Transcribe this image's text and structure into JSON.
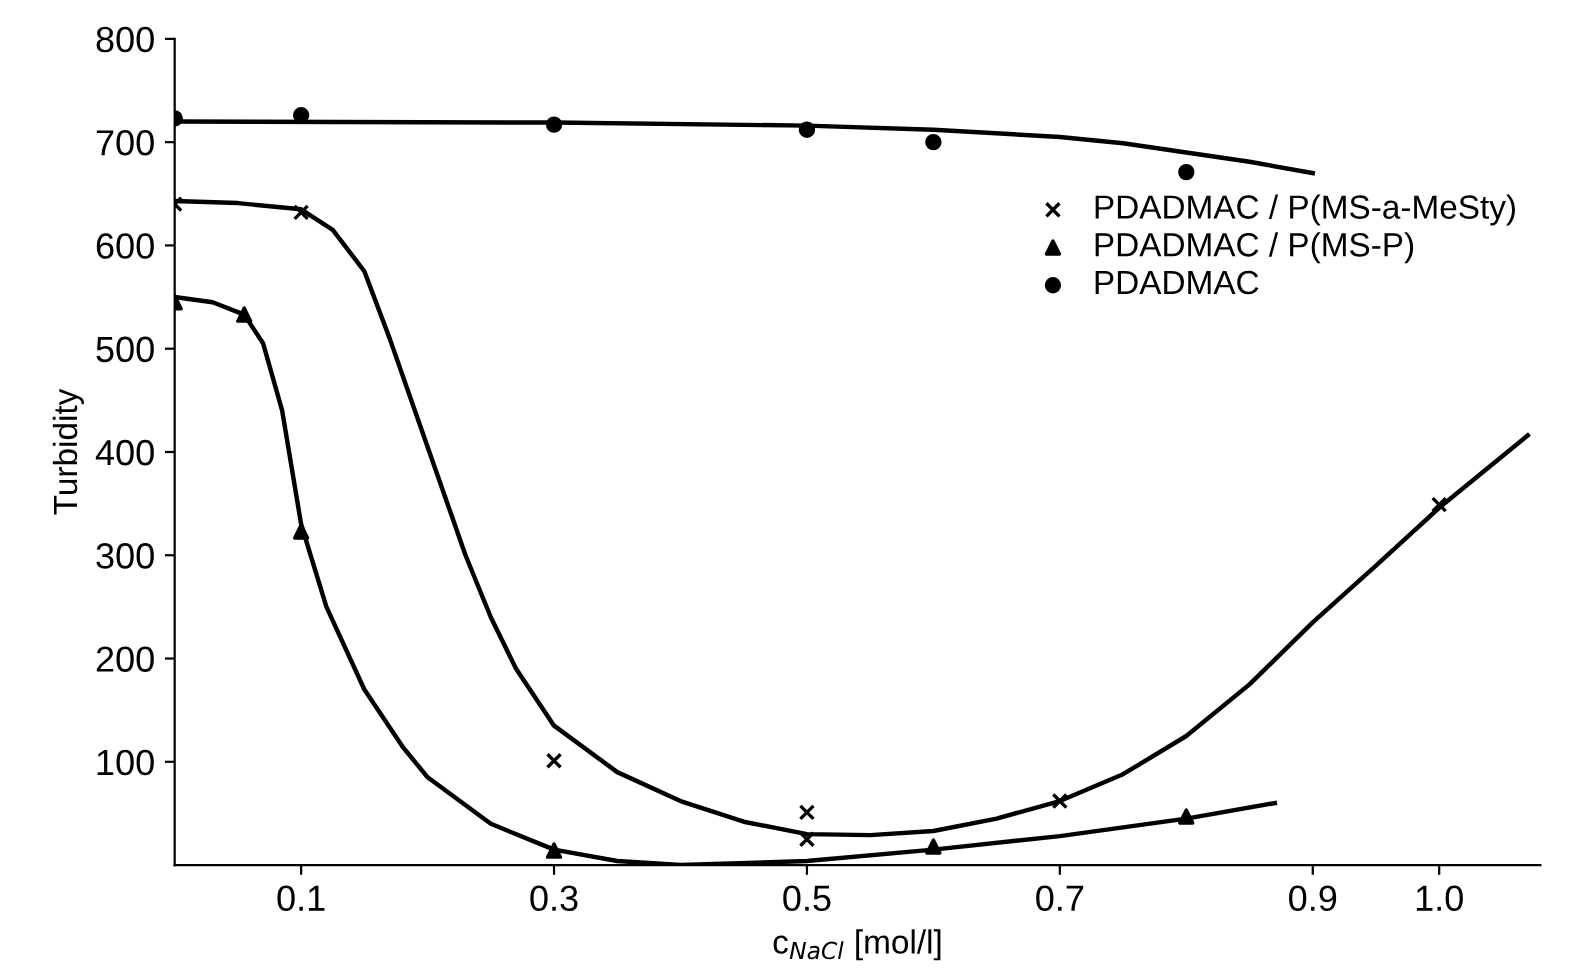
{
  "chart_data": {
    "type": "scatter",
    "xlabel": "c$_{NaCl}$ [mol/l]",
    "ylabel": "Turbidity",
    "xlim": [
      0,
      1.08
    ],
    "ylim": [
      0,
      800
    ],
    "xticks": [
      0.1,
      0.3,
      0.5,
      0.7,
      0.9,
      {
        "value": 1.0,
        "label": "1.0"
      }
    ],
    "yticks": [
      100,
      200,
      300,
      400,
      500,
      600,
      700,
      800
    ],
    "grid": false,
    "legend": "top right",
    "series": [
      {
        "name": "PDADMAC / P(MS-a-MeSty)",
        "type": "scatter",
        "marker": "cross",
        "color": "#000000",
        "x": [
          0,
          0.1,
          0.3,
          0.5,
          0.5,
          0.7,
          1.0
        ],
        "values": [
          640,
          632,
          101,
          51,
          25,
          62,
          349
        ]
      },
      {
        "name": "PDADMAC / P(MS-P)",
        "type": "scatter",
        "marker": "triangle",
        "color": "#000000",
        "x": [
          0,
          0.055,
          0.1,
          0.3,
          0.6,
          0.8
        ],
        "values": [
          545,
          533,
          323,
          14,
          18,
          47
        ]
      },
      {
        "name": "PDADMAC",
        "type": "scatter",
        "marker": "circle",
        "color": "#000000",
        "x": [
          0,
          0.1,
          0.3,
          0.5,
          0.6,
          0.8
        ],
        "values": [
          723,
          726,
          717,
          712,
          700,
          671
        ]
      },
      {
        "type": "line",
        "marker": "none",
        "color": "#000000",
        "x": [
          0,
          0.05,
          0.1,
          0.125,
          0.15,
          0.17,
          0.19,
          0.21,
          0.23,
          0.25,
          0.27,
          0.3,
          0.35,
          0.4,
          0.45,
          0.5,
          0.55,
          0.6,
          0.65,
          0.7,
          0.75,
          0.8,
          0.85,
          0.9,
          0.95,
          1.0,
          1.07
        ],
        "values": [
          643,
          641,
          635,
          615,
          575,
          510,
          440,
          370,
          300,
          240,
          190,
          135,
          90,
          62,
          42,
          30,
          29,
          33,
          45,
          62,
          88,
          125,
          175,
          235,
          290,
          346,
          416
        ]
      },
      {
        "type": "line",
        "marker": "none",
        "color": "#000000",
        "x": [
          0,
          0.03,
          0.055,
          0.07,
          0.085,
          0.1,
          0.12,
          0.15,
          0.18,
          0.2,
          0.25,
          0.3,
          0.35,
          0.4,
          0.5,
          0.6,
          0.7,
          0.8,
          0.87
        ],
        "values": [
          550,
          545,
          533,
          505,
          440,
          330,
          250,
          170,
          115,
          85,
          40,
          15,
          4,
          0,
          4,
          15,
          28,
          45,
          60
        ]
      },
      {
        "type": "line",
        "marker": "none",
        "color": "#000000",
        "x": [
          0,
          0.3,
          0.5,
          0.6,
          0.7,
          0.75,
          0.8,
          0.85,
          0.9
        ],
        "values": [
          720,
          719,
          716,
          712,
          705,
          699,
          690,
          681,
          670
        ]
      }
    ]
  }
}
